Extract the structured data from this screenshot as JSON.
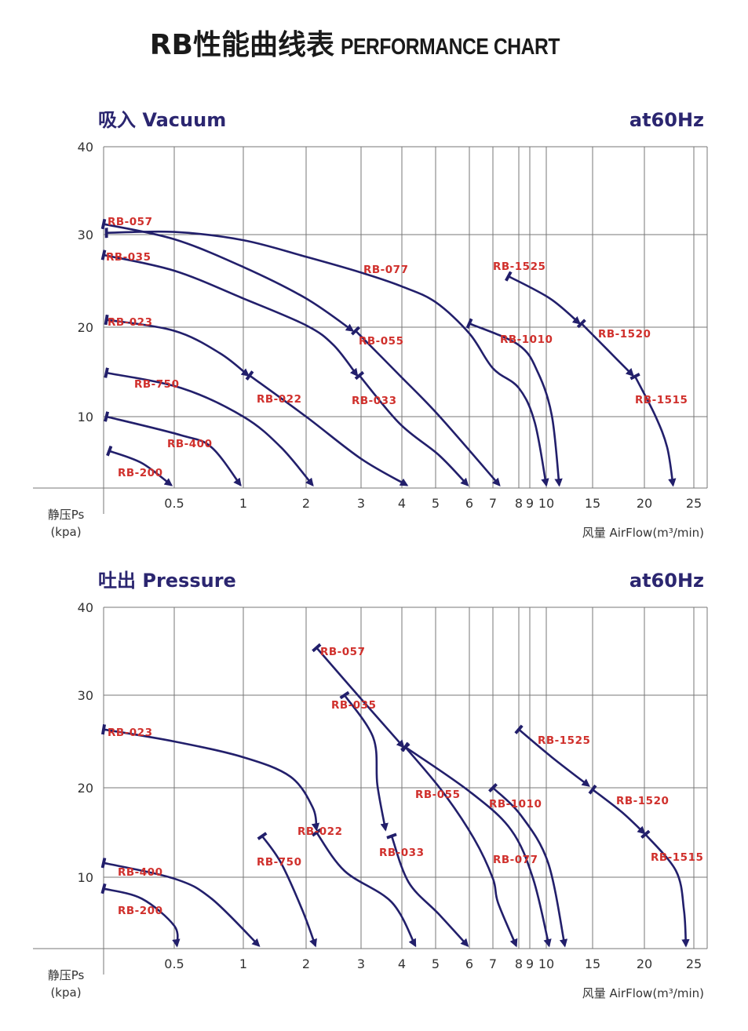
{
  "title": {
    "cn": "RB性能曲线表",
    "en": "PERFORMANCE CHART"
  },
  "colors": {
    "curve": "#221f6b",
    "label": "#d0302c",
    "header": "#2b2670",
    "grid": "#777777"
  },
  "chart_data": [
    {
      "type": "line",
      "title": "吸入 Vacuum",
      "frequency": "at60Hz",
      "xlabel": "风量 AirFlow(m³/min)",
      "ylabel": [
        "静压Ps",
        "(kpa)"
      ],
      "x_scale": "nonlinear (piecewise, expanded at low flow)",
      "xticks": [
        "0.5",
        "1",
        "2",
        "3",
        "4",
        "5",
        "6",
        "7",
        "8",
        "9",
        "10",
        "15",
        "20",
        "25"
      ],
      "yticks": [
        "10",
        "20",
        "30",
        "40"
      ],
      "xlim": [
        0,
        27
      ],
      "ylim": [
        0,
        40
      ],
      "grid": true,
      "series": [
        {
          "name": "RB-200",
          "points": [
            [
              0.04,
              5.2
            ],
            [
              0.27,
              3.5
            ],
            [
              0.48,
              0.4
            ]
          ]
        },
        {
          "name": "RB-400",
          "points": [
            [
              0.02,
              10
            ],
            [
              0.55,
              7.4
            ],
            [
              0.77,
              5.7
            ],
            [
              0.98,
              0.4
            ]
          ]
        },
        {
          "name": "RB-750",
          "points": [
            [
              0.02,
              14.9
            ],
            [
              0.55,
              13.2
            ],
            [
              1,
              10
            ],
            [
              1.6,
              5.7
            ],
            [
              2.12,
              0.4
            ]
          ]
        },
        {
          "name": "RB-023",
          "points": [
            [
              0.02,
              20.8
            ],
            [
              0.5,
              19.6
            ],
            [
              0.83,
              17.1
            ],
            [
              1.08,
              14.6
            ]
          ]
        },
        {
          "name": "RB-022",
          "points": [
            [
              1.1,
              14.6
            ],
            [
              2,
              10
            ],
            [
              3,
              4.1
            ],
            [
              4.15,
              0.4
            ]
          ]
        },
        {
          "name": "RB-035",
          "points": [
            [
              0,
              27.8
            ],
            [
              0.5,
              26.1
            ],
            [
              1,
              23.1
            ],
            [
              2,
              20.2
            ],
            [
              2.5,
              18
            ],
            [
              2.93,
              14.6
            ]
          ]
        },
        {
          "name": "RB-033",
          "points": [
            [
              2.97,
              14.6
            ],
            [
              3.95,
              9
            ],
            [
              5.1,
              4.6
            ],
            [
              5.95,
              0.4
            ]
          ]
        },
        {
          "name": "RB-057",
          "points": [
            [
              0,
              31.2
            ],
            [
              0.5,
              29.5
            ],
            [
              1,
              26.5
            ],
            [
              2,
              23.1
            ],
            [
              2.85,
              19.6
            ]
          ]
        },
        {
          "name": "RB-055",
          "points": [
            [
              2.9,
              19.6
            ],
            [
              3.95,
              14.6
            ],
            [
              5.1,
              10.1
            ],
            [
              7.25,
              0.4
            ]
          ]
        },
        {
          "name": "RB-077",
          "points": [
            [
              0.02,
              30.2
            ],
            [
              0.5,
              30.3
            ],
            [
              1,
              29.4
            ],
            [
              2,
              27.6
            ],
            [
              3,
              25.9
            ],
            [
              4,
              24.4
            ],
            [
              5,
              22.7
            ],
            [
              6,
              19.3
            ],
            [
              7,
              15.4
            ],
            [
              8,
              13.2
            ],
            [
              9.3,
              9.2
            ],
            [
              10,
              0.4
            ]
          ]
        },
        {
          "name": "RB-1010",
          "points": [
            [
              6,
              20.4
            ],
            [
              8,
              18
            ],
            [
              9.5,
              14.9
            ],
            [
              10.6,
              10.1
            ],
            [
              11.4,
              0.4
            ]
          ]
        },
        {
          "name": "RB-1525",
          "points": [
            [
              7.6,
              25.5
            ],
            [
              10.4,
              23.1
            ],
            [
              13.6,
              20.4
            ]
          ]
        },
        {
          "name": "RB-1520",
          "points": [
            [
              13.8,
              20.4
            ],
            [
              16.5,
              17.4
            ],
            [
              18.9,
              14.6
            ]
          ]
        },
        {
          "name": "RB-1515",
          "points": [
            [
              19.1,
              14.5
            ],
            [
              21.1,
              10.1
            ],
            [
              22.3,
              5.7
            ],
            [
              22.9,
              0.4
            ]
          ]
        }
      ]
    },
    {
      "type": "line",
      "title": "吐出 Pressure",
      "frequency": "at60Hz",
      "xlabel": "风量 AirFlow(m³/min)",
      "ylabel": [
        "静压Ps",
        "(kpa)"
      ],
      "x_scale": "nonlinear (piecewise, expanded at low flow)",
      "xticks": [
        "0.5",
        "1",
        "2",
        "3",
        "4",
        "5",
        "6",
        "7",
        "8",
        "9",
        "10",
        "15",
        "20",
        "25"
      ],
      "yticks": [
        "10",
        "20",
        "30",
        "40"
      ],
      "xlim": [
        0,
        27
      ],
      "ylim": [
        0,
        40
      ],
      "grid": true,
      "series": [
        {
          "name": "RB-200",
          "points": [
            [
              0,
              8.4
            ],
            [
              0.27,
              7
            ],
            [
              0.5,
              3.2
            ],
            [
              0.52,
              0.4
            ]
          ]
        },
        {
          "name": "RB-400",
          "points": [
            [
              0,
              11.6
            ],
            [
              0.5,
              9.8
            ],
            [
              0.77,
              7
            ],
            [
              1.25,
              0.4
            ]
          ]
        },
        {
          "name": "RB-750",
          "points": [
            [
              1.3,
              14.6
            ],
            [
              1.6,
              11.6
            ],
            [
              1.94,
              5.4
            ],
            [
              2.17,
              0.4
            ]
          ]
        },
        {
          "name": "RB-023",
          "points": [
            [
              0,
              26.3
            ],
            [
              0.5,
              25
            ],
            [
              1,
              23.3
            ],
            [
              1.75,
              21.2
            ],
            [
              2.12,
              17.8
            ],
            [
              2.19,
              15.3
            ]
          ]
        },
        {
          "name": "RB-022",
          "points": [
            [
              2.19,
              15
            ],
            [
              2.7,
              10.7
            ],
            [
              3.75,
              6.5
            ],
            [
              4.4,
              0.4
            ]
          ]
        },
        {
          "name": "RB-035",
          "points": [
            [
              2.7,
              30
            ],
            [
              3.3,
              25.4
            ],
            [
              3.4,
              20.3
            ],
            [
              3.6,
              15.3
            ]
          ]
        },
        {
          "name": "RB-033",
          "points": [
            [
              3.75,
              14.6
            ],
            [
              4.2,
              9.3
            ],
            [
              5.1,
              4.8
            ],
            [
              5.95,
              0.4
            ]
          ]
        },
        {
          "name": "RB-057",
          "points": [
            [
              2.19,
              35.4
            ],
            [
              3,
              29.6
            ],
            [
              4.05,
              24.4
            ]
          ]
        },
        {
          "name": "RB-055",
          "points": [
            [
              4.1,
              24.4
            ],
            [
              5.2,
              19.6
            ],
            [
              6.2,
              14.3
            ],
            [
              7,
              9.8
            ],
            [
              7.2,
              6.4
            ],
            [
              7.9,
              0.4
            ]
          ]
        },
        {
          "name": "RB-077",
          "points": [
            [
              4.1,
              24.4
            ],
            [
              6,
              19.6
            ],
            [
              7.7,
              15.3
            ],
            [
              9.2,
              9.8
            ],
            [
              10.3,
              0.4
            ]
          ]
        },
        {
          "name": "RB-1010",
          "points": [
            [
              7,
              20
            ],
            [
              8.2,
              16.9
            ],
            [
              10.2,
              11.6
            ],
            [
              12,
              0.4
            ]
          ]
        },
        {
          "name": "RB-1525",
          "points": [
            [
              8,
              26.3
            ],
            [
              10.6,
              23.3
            ],
            [
              14.6,
              20.2
            ]
          ]
        },
        {
          "name": "RB-1520",
          "points": [
            [
              15,
              19.8
            ],
            [
              17.8,
              17.3
            ],
            [
              20,
              14.9
            ]
          ]
        },
        {
          "name": "RB-1515",
          "points": [
            [
              20.1,
              14.8
            ],
            [
              23.2,
              10.7
            ],
            [
              24,
              5.4
            ],
            [
              24.2,
              0.4
            ]
          ]
        }
      ]
    }
  ]
}
